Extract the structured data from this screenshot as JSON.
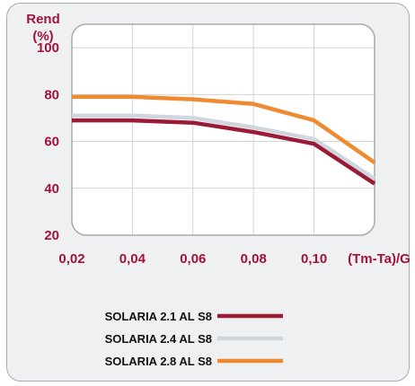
{
  "chart_data": {
    "type": "line",
    "ylabel": [
      "Rend",
      "(%)"
    ],
    "xlabel": "(Tm-Ta)/G",
    "x": [
      0.02,
      0.04,
      0.06,
      0.08,
      0.1,
      0.12
    ],
    "x_tick_labels": [
      "0,02",
      "0,04",
      "0,06",
      "0,08",
      "0,10"
    ],
    "y_tick_labels": [
      "20",
      "40",
      "60",
      "80",
      "100"
    ],
    "y_ticks": [
      20,
      40,
      60,
      80,
      100
    ],
    "xlim": [
      0.02,
      0.12
    ],
    "ylim": [
      20,
      110
    ],
    "grid": true,
    "legend_position": "bottom",
    "series": [
      {
        "name": "SOLARIA 2.1 AL S8",
        "color": "#9b1a35",
        "values": [
          69,
          69,
          68,
          64,
          59,
          42
        ]
      },
      {
        "name": "SOLARIA 2.4 AL S8",
        "color": "#cfd6de",
        "values": [
          71,
          71,
          70,
          66,
          61,
          44
        ]
      },
      {
        "name": "SOLARIA 2.8 AL S8",
        "color": "#ee8a30",
        "values": [
          79,
          79,
          78,
          76,
          69,
          51
        ]
      }
    ]
  }
}
